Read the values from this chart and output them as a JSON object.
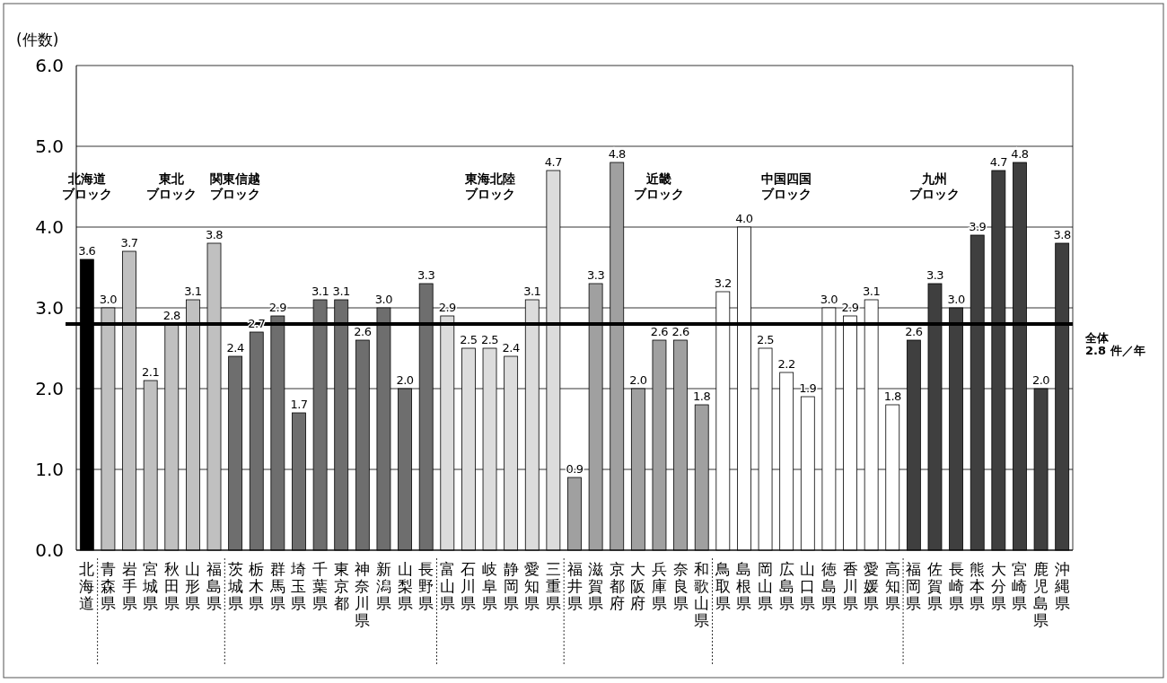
{
  "chart_data": {
    "type": "bar",
    "ylabel": "(件数)",
    "categories": [
      "北海道",
      "青森県",
      "岩手県",
      "宮城県",
      "秋田県",
      "山形県",
      "福島県",
      "茨城県",
      "栃木県",
      "群馬県",
      "埼玉県",
      "千葉県",
      "東京都",
      "神奈川県",
      "新潟県",
      "山梨県",
      "長野県",
      "富山県",
      "石川県",
      "岐阜県",
      "静岡県",
      "愛知県",
      "三重県",
      "福井県",
      "滋賀県",
      "京都府",
      "大阪府",
      "兵庫県",
      "奈良県",
      "和歌山県",
      "鳥取県",
      "島根県",
      "岡山県",
      "広島県",
      "山口県",
      "徳島県",
      "香川県",
      "愛媛県",
      "高知県",
      "福岡県",
      "佐賀県",
      "長崎県",
      "熊本県",
      "大分県",
      "宮崎県",
      "鹿児島県",
      "沖縄県"
    ],
    "values": [
      3.6,
      3.0,
      3.7,
      2.1,
      2.8,
      3.1,
      3.8,
      2.4,
      2.7,
      2.9,
      1.7,
      3.1,
      3.1,
      2.6,
      3.0,
      2.0,
      3.3,
      2.9,
      2.5,
      2.5,
      2.4,
      3.1,
      4.7,
      0.9,
      3.3,
      4.8,
      2.0,
      2.6,
      2.6,
      1.8,
      3.2,
      4.0,
      2.5,
      2.2,
      1.9,
      3.0,
      2.9,
      3.1,
      1.8,
      2.6,
      3.3,
      3.0,
      3.9,
      4.7,
      4.8,
      2.0,
      3.8
    ],
    "value_labels": [
      "3.6",
      "3.0",
      "3.7",
      "2.1",
      "2.8",
      "3.1",
      "3.8",
      "2.4",
      "2.7",
      "2.9",
      "1.7",
      "3.1",
      "3.1",
      "2.6",
      "3.0",
      "2.0",
      "3.3",
      "2.9",
      "2.5",
      "2.5",
      "2.4",
      "3.1",
      "4.7",
      "0.9",
      "3.3",
      "4.8",
      "2.0",
      "2.6",
      "2.6",
      "1.8",
      "3.2",
      "4.0",
      "2.5",
      "2.2",
      "1.9",
      "3.0",
      "2.9",
      "3.1",
      "1.8",
      "2.6",
      "3.3",
      "3.0",
      "3.9",
      "4.7",
      "4.8",
      "2.0",
      "3.8"
    ],
    "colors": [
      "#000000",
      "#c0c0c0",
      "#c0c0c0",
      "#c0c0c0",
      "#c0c0c0",
      "#c0c0c0",
      "#c0c0c0",
      "#6e6e6e",
      "#6e6e6e",
      "#6e6e6e",
      "#6e6e6e",
      "#6e6e6e",
      "#6e6e6e",
      "#6e6e6e",
      "#6e6e6e",
      "#6e6e6e",
      "#6e6e6e",
      "#dcdcdc",
      "#dcdcdc",
      "#dcdcdc",
      "#dcdcdc",
      "#dcdcdc",
      "#dcdcdc",
      "#a0a0a0",
      "#a0a0a0",
      "#a0a0a0",
      "#a0a0a0",
      "#a0a0a0",
      "#a0a0a0",
      "#a0a0a0",
      "#ffffff",
      "#ffffff",
      "#ffffff",
      "#ffffff",
      "#ffffff",
      "#ffffff",
      "#ffffff",
      "#ffffff",
      "#ffffff",
      "#3f3f3f",
      "#3f3f3f",
      "#3f3f3f",
      "#3f3f3f",
      "#3f3f3f",
      "#3f3f3f",
      "#3f3f3f",
      "#3f3f3f"
    ],
    "ylim": [
      0,
      6
    ],
    "yticks": [
      {
        "value": 0,
        "label": "0.0"
      },
      {
        "value": 1,
        "label": "1.0"
      },
      {
        "value": 2,
        "label": "2.0"
      },
      {
        "value": 3,
        "label": "3.0"
      },
      {
        "value": 4,
        "label": "4.0"
      },
      {
        "value": 5,
        "label": "5.0"
      },
      {
        "value": 6,
        "label": "6.0"
      }
    ],
    "grid": "y",
    "ref_lines": [
      {
        "axis": "y",
        "value": 2.8,
        "label": "全体\n2.8 件／年",
        "color": "#000000"
      }
    ],
    "annotations": [
      "北海道ブロック",
      "東北ブロック",
      "関東信越ブロック",
      "東海北陸ブロック",
      "近畿ブロック",
      "中国四国ブロック",
      "九州ブロック"
    ]
  }
}
